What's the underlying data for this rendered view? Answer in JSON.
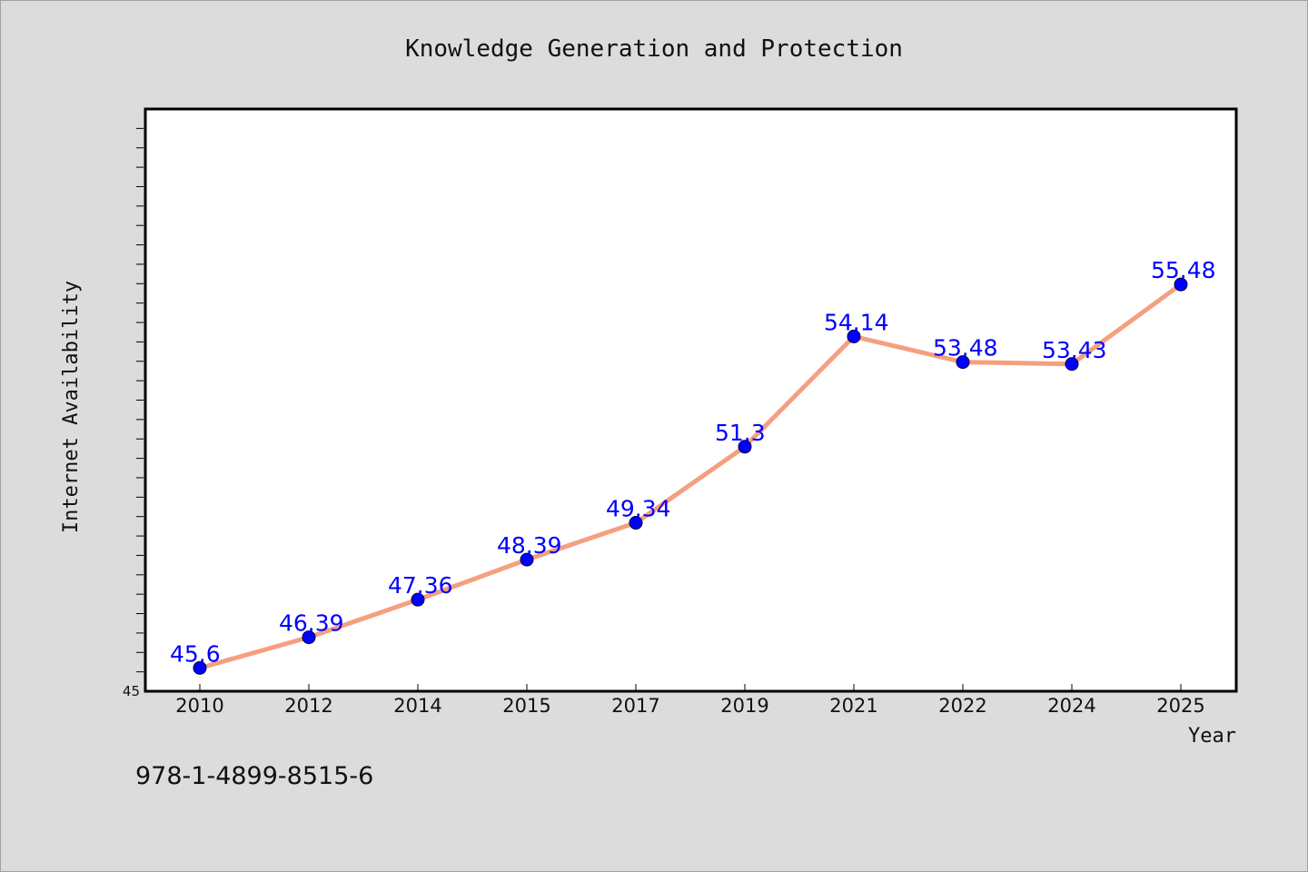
{
  "chart_data": {
    "type": "line",
    "title": "Knowledge Generation and Protection",
    "xlabel": "Year",
    "ylabel": "Internet Availability",
    "categories": [
      "2010",
      "2012",
      "2014",
      "2015",
      "2017",
      "2019",
      "2021",
      "2022",
      "2024",
      "2025"
    ],
    "series": [
      {
        "values": [
          45.6,
          46.39,
          47.36,
          48.39,
          49.34,
          51.3,
          54.14,
          53.48,
          53.43,
          55.48
        ],
        "data_labels": [
          "45.6",
          "46.39",
          "47.36",
          "48.39",
          "49.34",
          "51.3",
          "54.14",
          "53.48",
          "53.43",
          "55.48"
        ]
      }
    ],
    "ylim": [
      45,
      60
    ],
    "y_tick_labels": [
      "45"
    ],
    "grid": false,
    "line_color": "#f4a07f",
    "marker_color": "#0000ff",
    "label_color": "#0000ff",
    "background_color": "#dcdcdc",
    "plot_background_color": "#ffffff"
  },
  "footnote": "978-1-4899-8515-6"
}
